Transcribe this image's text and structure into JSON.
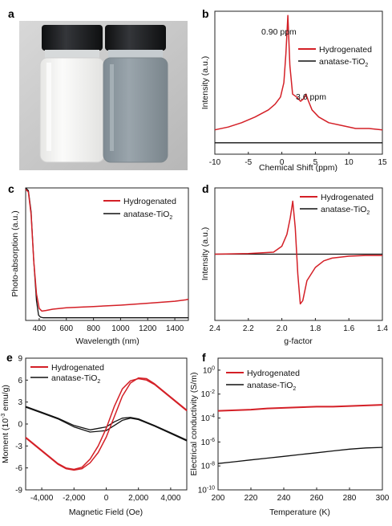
{
  "panel_labels": [
    "a",
    "b",
    "c",
    "d",
    "e",
    "f"
  ],
  "colors": {
    "hydrogenated": "#d42027",
    "anatase": "#111111"
  },
  "photo": {
    "description_icons": [
      "white-powder-vial-icon",
      "gray-powder-vial-icon"
    ],
    "white_powder": "#f4f4f2",
    "gray_powder": "#8f9aa1",
    "cap": "#1b1c1e",
    "background": "#c9c9c9"
  },
  "chart_data": [
    {
      "id": "b",
      "type": "line",
      "xlabel": "Chemical Shift (ppm)",
      "ylabel": "Intensity (a.u.)",
      "xlim": [
        -10,
        15
      ],
      "xticks": [
        "-10",
        "-5",
        "0",
        "5",
        "10",
        "15"
      ],
      "ylim": [
        0,
        1
      ],
      "legend": [
        "Hydrogenated",
        "anatase-TiO",
        "2"
      ],
      "annotations": [
        "0.90 ppm",
        "3.6 ppm"
      ],
      "series": [
        {
          "name": "Hydrogenated",
          "x": [
            -10,
            -8,
            -6,
            -4,
            -2,
            -1,
            -0.2,
            0.3,
            0.6,
            0.9,
            1.2,
            1.6,
            2.2,
            2.8,
            3.3,
            3.6,
            3.9,
            4.5,
            5.5,
            7,
            9,
            11,
            13,
            15
          ],
          "y": [
            0.17,
            0.19,
            0.22,
            0.26,
            0.31,
            0.35,
            0.4,
            0.5,
            0.7,
            0.97,
            0.62,
            0.42,
            0.4,
            0.37,
            0.39,
            0.42,
            0.38,
            0.31,
            0.26,
            0.22,
            0.2,
            0.18,
            0.18,
            0.17
          ]
        },
        {
          "name": "anatase-TiO2",
          "x": [
            -10,
            15
          ],
          "y": [
            0.08,
            0.08
          ]
        }
      ]
    },
    {
      "id": "c",
      "type": "line",
      "xlabel": "Wavelength (nm)",
      "ylabel": "Photo-absorption (a.u.)",
      "xlim": [
        300,
        1500
      ],
      "xticks": [
        "400",
        "600",
        "800",
        "1000",
        "1200",
        "1400"
      ],
      "ylim": [
        0,
        1
      ],
      "legend": [
        "Hydrogenated",
        "anatase-TiO",
        "2"
      ],
      "series": [
        {
          "name": "Hydrogenated",
          "x": [
            300,
            320,
            340,
            360,
            380,
            400,
            420,
            450,
            500,
            600,
            800,
            1000,
            1200,
            1400,
            1480,
            1500
          ],
          "y": [
            0.99,
            0.97,
            0.8,
            0.45,
            0.2,
            0.09,
            0.07,
            0.075,
            0.085,
            0.095,
            0.105,
            0.115,
            0.13,
            0.145,
            0.155,
            0.16
          ]
        },
        {
          "name": "anatase-TiO2",
          "x": [
            300,
            320,
            340,
            360,
            380,
            395,
            410,
            430,
            500,
            800,
            1200,
            1500
          ],
          "y": [
            1.0,
            0.98,
            0.82,
            0.45,
            0.15,
            0.04,
            0.025,
            0.02,
            0.02,
            0.02,
            0.02,
            0.02
          ]
        }
      ]
    },
    {
      "id": "d",
      "type": "line",
      "xlabel": "g-factor",
      "ylabel": "Intensity (a.u.)",
      "xlim": [
        2.4,
        1.4
      ],
      "xticks": [
        "2.4",
        "2.2",
        "2.0",
        "1.8",
        "1.6",
        "1.4"
      ],
      "ylim": [
        -1,
        1
      ],
      "legend": [
        "Hydrogenated",
        "anatase-TiO",
        "2"
      ],
      "series": [
        {
          "name": "Hydrogenated",
          "x": [
            2.4,
            2.2,
            2.05,
            2.0,
            1.97,
            1.95,
            1.935,
            1.92,
            1.905,
            1.89,
            1.875,
            1.85,
            1.8,
            1.75,
            1.7,
            1.6,
            1.5,
            1.4
          ],
          "y": [
            0.0,
            0.01,
            0.03,
            0.12,
            0.3,
            0.55,
            0.8,
            0.4,
            -0.3,
            -0.75,
            -0.7,
            -0.4,
            -0.2,
            -0.1,
            -0.06,
            -0.03,
            -0.02,
            -0.02
          ]
        },
        {
          "name": "anatase-TiO2",
          "x": [
            2.4,
            1.4
          ],
          "y": [
            0.0,
            0.0
          ]
        }
      ]
    },
    {
      "id": "e",
      "type": "line",
      "xlabel": "Magnetic Field (Oe)",
      "ylabel": "Moment (10",
      "ylabel_sup": "-3",
      "ylabel_tail": " emu/g)",
      "xlim": [
        -5000,
        5000
      ],
      "xticks": [
        "-4,000",
        "-2,000",
        "0",
        "2,000",
        "4,000"
      ],
      "ylim": [
        -9,
        9
      ],
      "yticks": [
        "-9",
        "-6",
        "-3",
        "0",
        "3",
        "6",
        "9"
      ],
      "legend": [
        "Hydrogenated",
        "anatase-TiO",
        "2"
      ],
      "series": [
        {
          "name": "Hydrogenated (up)",
          "x": [
            -5000,
            -4000,
            -3000,
            -2500,
            -2000,
            -1500,
            -1000,
            -500,
            0,
            500,
            1000,
            1500,
            2000,
            2500,
            3000,
            4000,
            5000
          ],
          "y": [
            -1.8,
            -3.6,
            -5.4,
            -6.0,
            -6.2,
            -5.9,
            -4.8,
            -3.0,
            -0.6,
            2.4,
            4.8,
            5.9,
            6.2,
            6.0,
            5.4,
            3.6,
            1.8
          ]
        },
        {
          "name": "Hydrogenated (down)",
          "x": [
            -5000,
            -4000,
            -3000,
            -2500,
            -2000,
            -1500,
            -1000,
            -500,
            0,
            500,
            1000,
            1500,
            2000,
            2500,
            3000,
            4000,
            5000
          ],
          "y": [
            -1.9,
            -3.7,
            -5.5,
            -6.1,
            -6.3,
            -6.1,
            -5.3,
            -3.9,
            -1.8,
            1.0,
            3.8,
            5.6,
            6.3,
            6.2,
            5.5,
            3.7,
            1.9
          ]
        },
        {
          "name": "anatase-TiO2 (up)",
          "x": [
            -5000,
            -4000,
            -3000,
            -2000,
            -1000,
            0,
            500,
            1000,
            1500,
            2000,
            3000,
            4000,
            5000
          ],
          "y": [
            2.4,
            1.6,
            0.8,
            -0.2,
            -0.8,
            -0.4,
            0.3,
            0.8,
            0.9,
            0.7,
            -0.2,
            -1.2,
            -2.2
          ]
        },
        {
          "name": "anatase-TiO2 (down)",
          "x": [
            -5000,
            -4000,
            -3000,
            -2000,
            -1000,
            0,
            500,
            1000,
            1500,
            2000,
            3000,
            4000,
            5000
          ],
          "y": [
            2.3,
            1.5,
            0.7,
            -0.4,
            -1.1,
            -0.9,
            -0.2,
            0.5,
            0.8,
            0.6,
            -0.3,
            -1.3,
            -2.3
          ]
        }
      ]
    },
    {
      "id": "f",
      "type": "line",
      "xlabel": "Temperature (K)",
      "ylabel": "Electrical conductivity (S/m)",
      "xlim": [
        200,
        300
      ],
      "xticks": [
        "200",
        "220",
        "240",
        "260",
        "280",
        "300"
      ],
      "ylim_log10": [
        -10,
        1
      ],
      "ytick_exponents": [
        "0",
        "-2",
        "-4",
        "-6",
        "-8",
        "-10"
      ],
      "legend": [
        "Hydrogenated",
        "anatase-TiO",
        "2"
      ],
      "series": [
        {
          "name": "Hydrogenated",
          "x": [
            200,
            210,
            220,
            230,
            240,
            250,
            260,
            270,
            280,
            290,
            300
          ],
          "log10_y": [
            -3.4,
            -3.35,
            -3.3,
            -3.2,
            -3.15,
            -3.1,
            -3.05,
            -3.05,
            -3.0,
            -2.95,
            -2.9
          ]
        },
        {
          "name": "anatase-TiO2",
          "x": [
            200,
            210,
            220,
            230,
            240,
            250,
            260,
            270,
            280,
            290,
            300
          ],
          "log10_y": [
            -7.8,
            -7.65,
            -7.5,
            -7.35,
            -7.2,
            -7.05,
            -6.9,
            -6.75,
            -6.6,
            -6.5,
            -6.45
          ]
        }
      ]
    }
  ]
}
